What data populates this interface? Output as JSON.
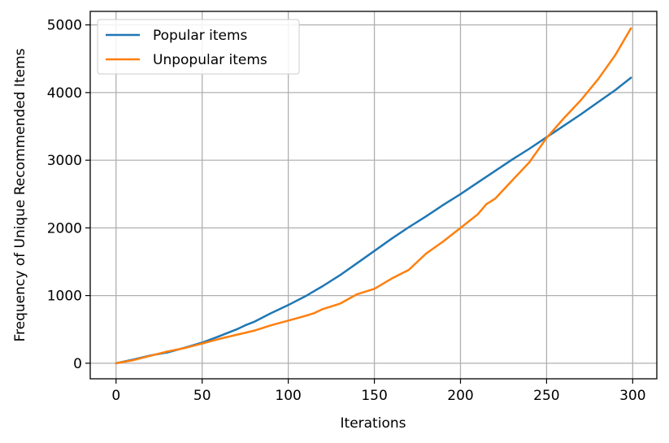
{
  "chart_data": {
    "type": "line",
    "title": "",
    "xlabel": "Iterations",
    "ylabel": "Frequency of Unique Recommended Items",
    "xlim": [
      -15,
      314
    ],
    "ylim": [
      -230,
      5200
    ],
    "xticks": [
      0,
      50,
      100,
      150,
      200,
      250,
      300
    ],
    "yticks": [
      0,
      1000,
      2000,
      3000,
      4000,
      5000
    ],
    "xtick_labels": [
      "0",
      "50",
      "100",
      "150",
      "200",
      "250",
      "300"
    ],
    "ytick_labels": [
      "0",
      "1000",
      "2000",
      "3000",
      "4000",
      "5000"
    ],
    "grid": true,
    "legend_position": "top-left",
    "series": [
      {
        "name": "Popular items",
        "color": "#1f77b4",
        "x": [
          0,
          10,
          20,
          30,
          40,
          50,
          60,
          70,
          75,
          80,
          90,
          100,
          110,
          120,
          130,
          140,
          150,
          160,
          170,
          180,
          190,
          200,
          210,
          220,
          230,
          240,
          250,
          260,
          270,
          280,
          290,
          299
        ],
        "y": [
          0,
          55,
          115,
          160,
          230,
          305,
          400,
          500,
          560,
          610,
          740,
          860,
          990,
          1140,
          1300,
          1480,
          1660,
          1840,
          2010,
          2170,
          2340,
          2500,
          2670,
          2840,
          3010,
          3170,
          3340,
          3510,
          3680,
          3860,
          4040,
          4220
        ]
      },
      {
        "name": "Unpopular items",
        "color": "#ff7f0e",
        "x": [
          0,
          10,
          20,
          30,
          40,
          50,
          60,
          70,
          80,
          90,
          100,
          110,
          115,
          120,
          130,
          140,
          150,
          160,
          170,
          180,
          190,
          200,
          210,
          215,
          220,
          230,
          240,
          250,
          260,
          270,
          280,
          290,
          299
        ],
        "y": [
          0,
          45,
          110,
          175,
          225,
          290,
          360,
          420,
          480,
          560,
          630,
          700,
          740,
          800,
          880,
          1020,
          1100,
          1250,
          1380,
          1620,
          1800,
          2000,
          2200,
          2350,
          2430,
          2700,
          2970,
          3330,
          3620,
          3890,
          4200,
          4560,
          4950
        ]
      }
    ]
  }
}
